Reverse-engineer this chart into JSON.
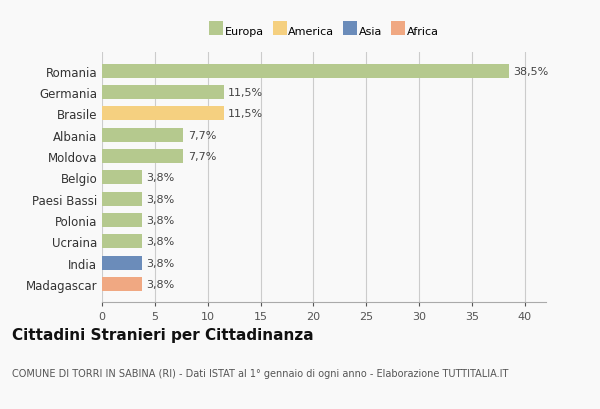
{
  "categories": [
    "Madagascar",
    "India",
    "Ucraina",
    "Polonia",
    "Paesi Bassi",
    "Belgio",
    "Moldova",
    "Albania",
    "Brasile",
    "Germania",
    "Romania"
  ],
  "values": [
    3.8,
    3.8,
    3.8,
    3.8,
    3.8,
    3.8,
    7.7,
    7.7,
    11.5,
    11.5,
    38.5
  ],
  "labels": [
    "3,8%",
    "3,8%",
    "3,8%",
    "3,8%",
    "3,8%",
    "3,8%",
    "7,7%",
    "7,7%",
    "11,5%",
    "11,5%",
    "38,5%"
  ],
  "colors": [
    "#f0a882",
    "#6b8cba",
    "#b5c98e",
    "#b5c98e",
    "#b5c98e",
    "#b5c98e",
    "#b5c98e",
    "#b5c98e",
    "#f5d080",
    "#b5c98e",
    "#b5c98e"
  ],
  "legend_labels": [
    "Europa",
    "America",
    "Asia",
    "Africa"
  ],
  "legend_colors": [
    "#b5c98e",
    "#f5d080",
    "#6b8cba",
    "#f0a882"
  ],
  "title": "Cittadini Stranieri per Cittadinanza",
  "subtitle": "COMUNE DI TORRI IN SABINA (RI) - Dati ISTAT al 1° gennaio di ogni anno - Elaborazione TUTTITALIA.IT",
  "xlim": [
    0,
    42
  ],
  "xticks": [
    0,
    5,
    10,
    15,
    20,
    25,
    30,
    35,
    40
  ],
  "bg_color": "#f9f9f9",
  "bar_height": 0.65,
  "grid_color": "#cccccc",
  "label_fontsize": 8,
  "tick_fontsize": 8,
  "title_fontsize": 11,
  "subtitle_fontsize": 7,
  "yticklabel_fontsize": 8.5
}
